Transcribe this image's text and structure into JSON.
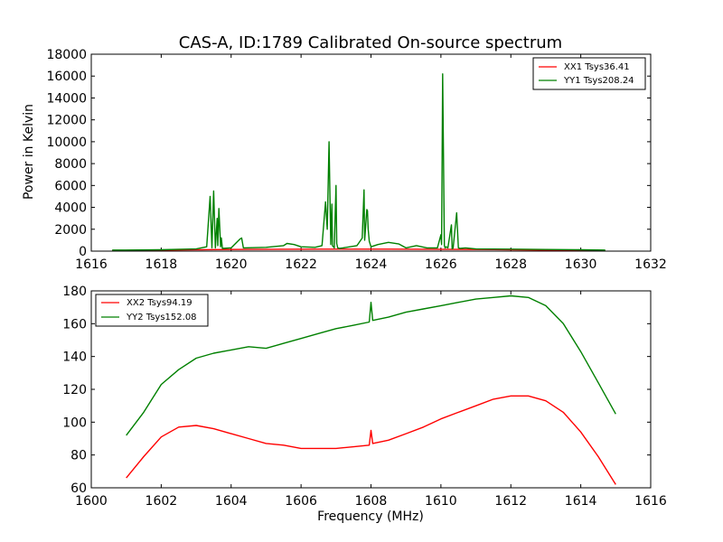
{
  "figure": {
    "background": "#ffffff"
  },
  "chart_data": [
    {
      "type": "line",
      "title": "CAS-A, ID:1789 Calibrated On-source spectrum",
      "xlabel": "",
      "ylabel": "Power in Kelvin",
      "xlim": [
        1616,
        1632
      ],
      "ylim": [
        0,
        18000
      ],
      "xticks": [
        1616,
        1618,
        1620,
        1622,
        1624,
        1626,
        1628,
        1630,
        1632
      ],
      "yticks": [
        0,
        2000,
        4000,
        6000,
        8000,
        10000,
        12000,
        14000,
        16000,
        18000
      ],
      "legend_position": "top-right",
      "series": [
        {
          "name": "XX1 Tsys36.41",
          "color": "#ff0000",
          "x": [
            1616.6,
            1617.5,
            1618.5,
            1619.5,
            1620.5,
            1621.5,
            1622.5,
            1623.5,
            1624.5,
            1625.5,
            1626.5,
            1627.5,
            1628.5,
            1629.5,
            1630.7
          ],
          "y": [
            60,
            80,
            110,
            140,
            160,
            170,
            180,
            185,
            180,
            175,
            160,
            140,
            110,
            80,
            40
          ]
        },
        {
          "name": "YY1 Tsys208.24",
          "color": "#008000",
          "x": [
            1616.6,
            1617.0,
            1618.0,
            1619.0,
            1619.3,
            1619.4,
            1619.45,
            1619.5,
            1619.55,
            1619.6,
            1619.62,
            1619.65,
            1619.7,
            1619.72,
            1619.75,
            1620.0,
            1620.25,
            1620.3,
            1620.35,
            1621.0,
            1621.5,
            1621.6,
            1621.8,
            1622.0,
            1622.4,
            1622.6,
            1622.7,
            1622.75,
            1622.8,
            1622.85,
            1622.88,
            1622.9,
            1622.95,
            1623.0,
            1623.02,
            1623.05,
            1623.1,
            1623.2,
            1623.6,
            1623.75,
            1623.8,
            1623.82,
            1623.88,
            1623.9,
            1623.92,
            1623.95,
            1624.0,
            1624.2,
            1624.5,
            1624.8,
            1625.0,
            1625.3,
            1625.6,
            1625.9,
            1626.0,
            1626.02,
            1626.05,
            1626.1,
            1626.12,
            1626.15,
            1626.2,
            1626.3,
            1626.32,
            1626.35,
            1626.45,
            1626.5,
            1626.55,
            1626.7,
            1627.0,
            1628.0,
            1629.0,
            1630.0,
            1630.7
          ],
          "y": [
            100,
            100,
            120,
            200,
            400,
            5000,
            300,
            5500,
            300,
            3000,
            500,
            3900,
            400,
            1200,
            250,
            300,
            1100,
            1200,
            300,
            350,
            500,
            700,
            600,
            400,
            350,
            500,
            4500,
            2000,
            10000,
            600,
            4300,
            500,
            300,
            6000,
            700,
            300,
            250,
            300,
            500,
            1200,
            5600,
            1000,
            3800,
            3700,
            2000,
            900,
            400,
            600,
            800,
            650,
            300,
            500,
            300,
            300,
            1500,
            600,
            16200,
            500,
            300,
            400,
            300,
            2400,
            200,
            300,
            3500,
            300,
            250,
            300,
            200,
            180,
            150,
            120,
            100
          ]
        }
      ]
    },
    {
      "type": "line",
      "title": "",
      "xlabel": "Frequency (MHz)",
      "ylabel": "",
      "xlim": [
        1600,
        1616
      ],
      "ylim": [
        60,
        180
      ],
      "xticks": [
        1600,
        1602,
        1604,
        1606,
        1608,
        1610,
        1612,
        1614,
        1616
      ],
      "yticks": [
        60,
        80,
        100,
        120,
        140,
        160,
        180
      ],
      "legend_position": "top-left",
      "series": [
        {
          "name": "XX2 Tsys94.19",
          "color": "#ff0000",
          "x": [
            1601.0,
            1601.5,
            1602.0,
            1602.5,
            1603.0,
            1603.5,
            1604.0,
            1604.5,
            1605.0,
            1605.5,
            1606.0,
            1606.5,
            1607.0,
            1607.5,
            1607.95,
            1608.0,
            1608.05,
            1608.5,
            1609.0,
            1609.5,
            1610.0,
            1610.5,
            1611.0,
            1611.5,
            1612.0,
            1612.5,
            1613.0,
            1613.5,
            1614.0,
            1614.5,
            1615.0
          ],
          "y": [
            66,
            79,
            91,
            97,
            98,
            96,
            93,
            90,
            87,
            86,
            84,
            84,
            84,
            85,
            86,
            95,
            87,
            89,
            93,
            97,
            102,
            106,
            110,
            114,
            116,
            116,
            113,
            106,
            94,
            79,
            62
          ]
        },
        {
          "name": "YY2 Tsys152.08",
          "color": "#008000",
          "x": [
            1601.0,
            1601.5,
            1602.0,
            1602.5,
            1603.0,
            1603.5,
            1604.0,
            1604.5,
            1605.0,
            1605.5,
            1606.0,
            1606.5,
            1607.0,
            1607.5,
            1607.95,
            1608.0,
            1608.05,
            1608.5,
            1609.0,
            1609.5,
            1610.0,
            1610.5,
            1611.0,
            1611.5,
            1612.0,
            1612.5,
            1613.0,
            1613.5,
            1614.0,
            1614.5,
            1615.0
          ],
          "y": [
            92,
            106,
            123,
            132,
            139,
            142,
            144,
            146,
            145,
            148,
            151,
            154,
            157,
            159,
            161,
            173,
            162,
            164,
            167,
            169,
            171,
            173,
            175,
            176,
            177,
            176,
            171,
            160,
            143,
            124,
            105
          ]
        }
      ]
    }
  ]
}
